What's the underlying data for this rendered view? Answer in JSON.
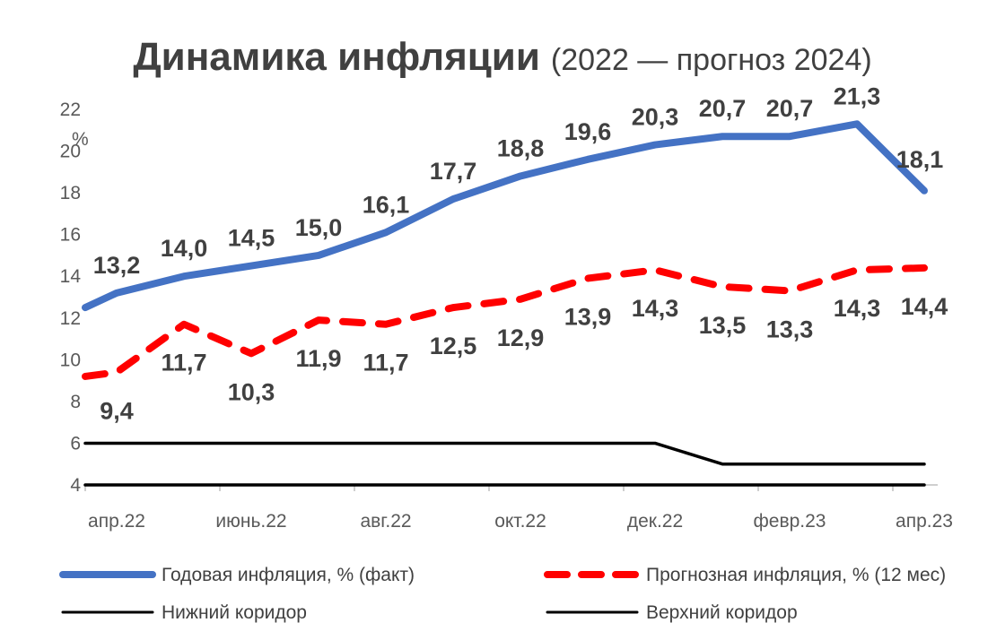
{
  "chart_data": {
    "type": "line",
    "title": "Динамика инфляции",
    "subtitle": "(2022 — прогноз 2024)",
    "ylabel": "%",
    "ylim": [
      4,
      22
    ],
    "yticks": [
      "4",
      "6",
      "8",
      "10",
      "12",
      "14",
      "16",
      "18",
      "20",
      "22"
    ],
    "xticks": [
      "апр.22",
      "июнь.22",
      "авг.22",
      "окт.22",
      "дек.22",
      "февр.23",
      "апр.23"
    ],
    "grid": false,
    "legend_position": "bottom",
    "x": [
      "2022-04-01",
      "2022-04-15",
      "2022-05-15",
      "2022-06-15",
      "2022-07-15",
      "2022-08-15",
      "2022-09-15",
      "2022-10-15",
      "2022-11-15",
      "2022-12-15",
      "2023-01-15",
      "2023-02-15",
      "2023-03-15",
      "2023-04-15"
    ],
    "series": [
      {
        "name": "Годовая инфляция, % (факт)",
        "color": "#4472C4",
        "style": "solid",
        "values": [
          12.5,
          13.2,
          14.0,
          14.5,
          15.0,
          16.1,
          17.7,
          18.8,
          19.6,
          20.3,
          20.7,
          20.7,
          21.3,
          18.1
        ],
        "labels": [
          "",
          "13,2",
          "14,0",
          "14,5",
          "15,0",
          "16,1",
          "17,7",
          "18,8",
          "19,6",
          "20,3",
          "20,7",
          "20,7",
          "21,3",
          "18,1"
        ]
      },
      {
        "name": "Прогнозная инфляция, % (12 мес)",
        "color": "#FF0000",
        "style": "dashed",
        "values": [
          9.2,
          9.4,
          11.7,
          10.3,
          11.9,
          11.7,
          12.5,
          12.9,
          13.9,
          14.3,
          13.5,
          13.3,
          14.3,
          14.4
        ],
        "labels": [
          "",
          "9,4",
          "11,7",
          "10,3",
          "11,9",
          "11,7",
          "12,5",
          "12,9",
          "13,9",
          "14,3",
          "13,5",
          "13,3",
          "14,3",
          "14,4"
        ]
      },
      {
        "name": "Нижний коридор",
        "color": "#000000",
        "style": "solid",
        "values": [
          4,
          4,
          4,
          4,
          4,
          4,
          4,
          4,
          4,
          4,
          4,
          4,
          4,
          4
        ],
        "labels": []
      },
      {
        "name": "Верхний коридор",
        "color": "#000000",
        "style": "solid",
        "values": [
          6,
          6,
          6,
          6,
          6,
          6,
          6,
          6,
          6,
          6,
          5,
          5,
          5,
          5
        ],
        "labels": []
      }
    ]
  }
}
